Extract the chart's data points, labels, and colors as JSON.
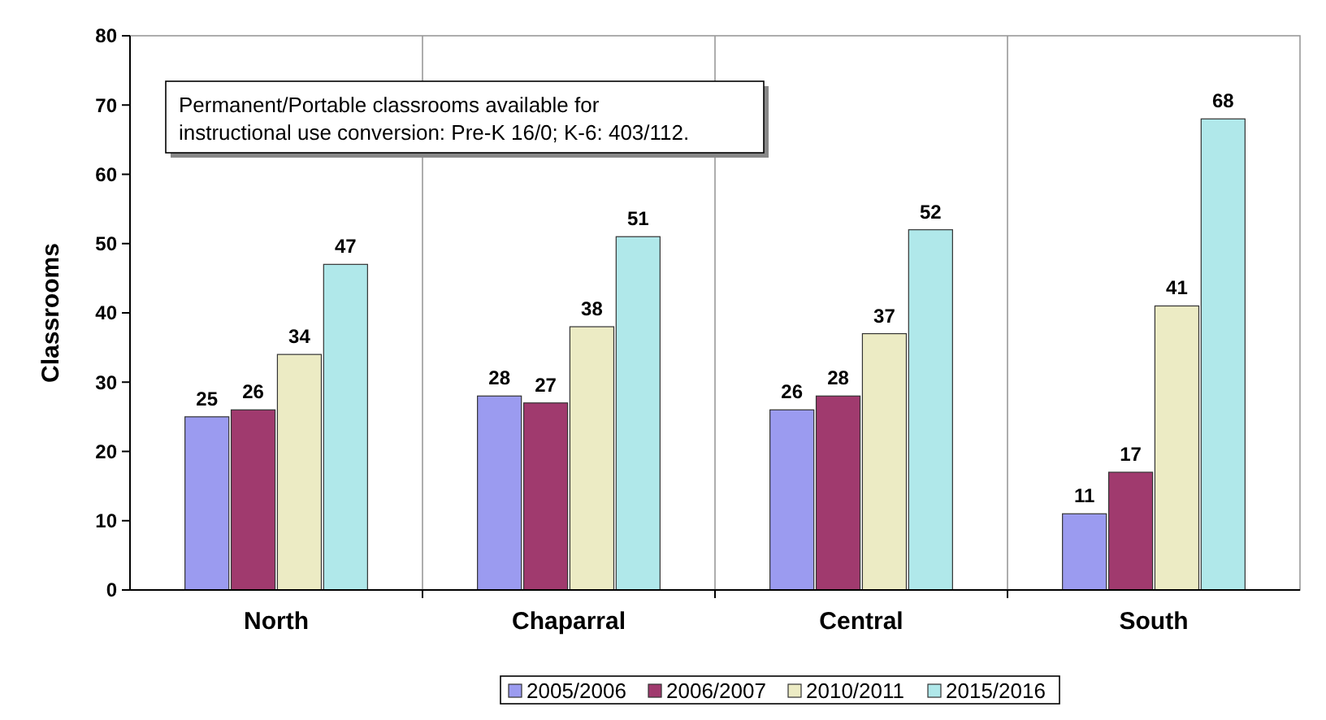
{
  "chart_data": {
    "type": "bar",
    "ylabel": "Classrooms",
    "categories": [
      "North",
      "Chaparral",
      "Central",
      "South"
    ],
    "series": [
      {
        "name": "2005/2006",
        "color": "#9b9bf0",
        "values": [
          25,
          28,
          26,
          11
        ]
      },
      {
        "name": "2006/2007",
        "color": "#a03a6e",
        "values": [
          26,
          27,
          28,
          17
        ]
      },
      {
        "name": "2010/2011",
        "color": "#ecebc4",
        "values": [
          34,
          38,
          37,
          41
        ]
      },
      {
        "name": "2015/2016",
        "color": "#b0e8ea",
        "values": [
          47,
          51,
          52,
          68
        ]
      }
    ],
    "ylim": [
      0,
      80
    ],
    "yticks": [
      0,
      10,
      20,
      30,
      40,
      50,
      60,
      70,
      80
    ],
    "grid": "x",
    "legend": "bottom",
    "data_labels": true,
    "annotations": [
      "Permanent/Portable classrooms available for instructional use conversion: Pre-K 16/0; K-6: 403/112."
    ]
  }
}
